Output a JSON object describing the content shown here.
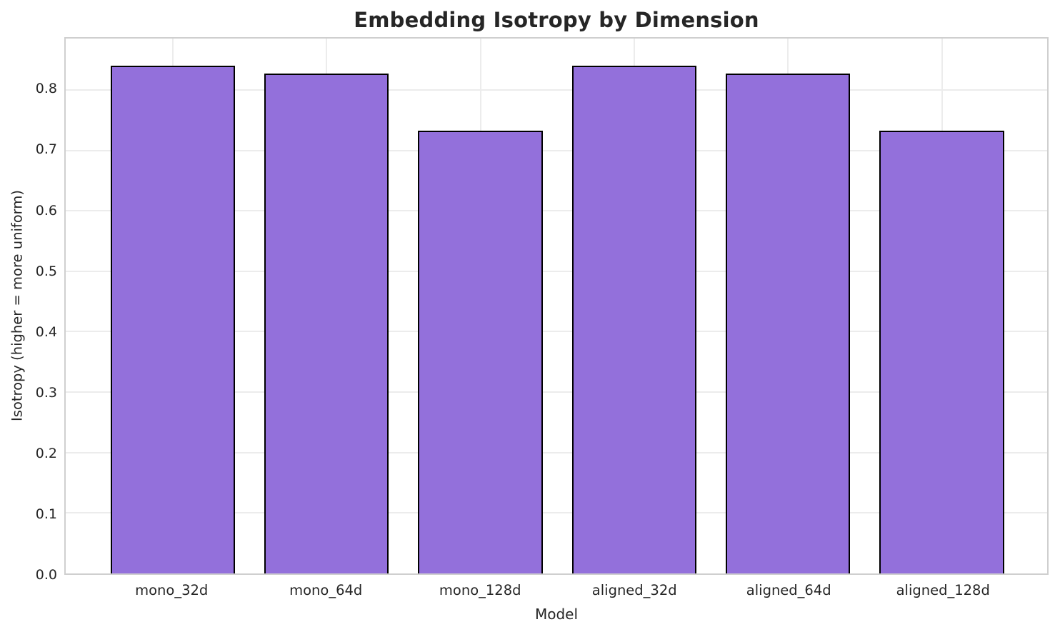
{
  "chart_data": {
    "type": "bar",
    "title": "Embedding Isotropy by Dimension",
    "xlabel": "Model",
    "ylabel": "Isotropy (higher = more uniform)",
    "categories": [
      "mono_32d",
      "mono_64d",
      "mono_128d",
      "aligned_32d",
      "aligned_64d",
      "aligned_128d"
    ],
    "values": [
      0.84,
      0.827,
      0.733,
      0.84,
      0.827,
      0.733
    ],
    "ylim": [
      0,
      0.885
    ],
    "yticks": [
      0.0,
      0.1,
      0.2,
      0.3,
      0.4,
      0.5,
      0.6,
      0.7,
      0.8
    ],
    "ytick_labels": [
      "0.0",
      "0.1",
      "0.2",
      "0.3",
      "0.4",
      "0.5",
      "0.6",
      "0.7",
      "0.8"
    ],
    "grid": true,
    "legend": null,
    "bar_color": "#9370DB",
    "bar_edge_color": "#000000",
    "grid_color": "#ececec",
    "spine_color": "#cfcfcf",
    "text_color": "#262626"
  }
}
